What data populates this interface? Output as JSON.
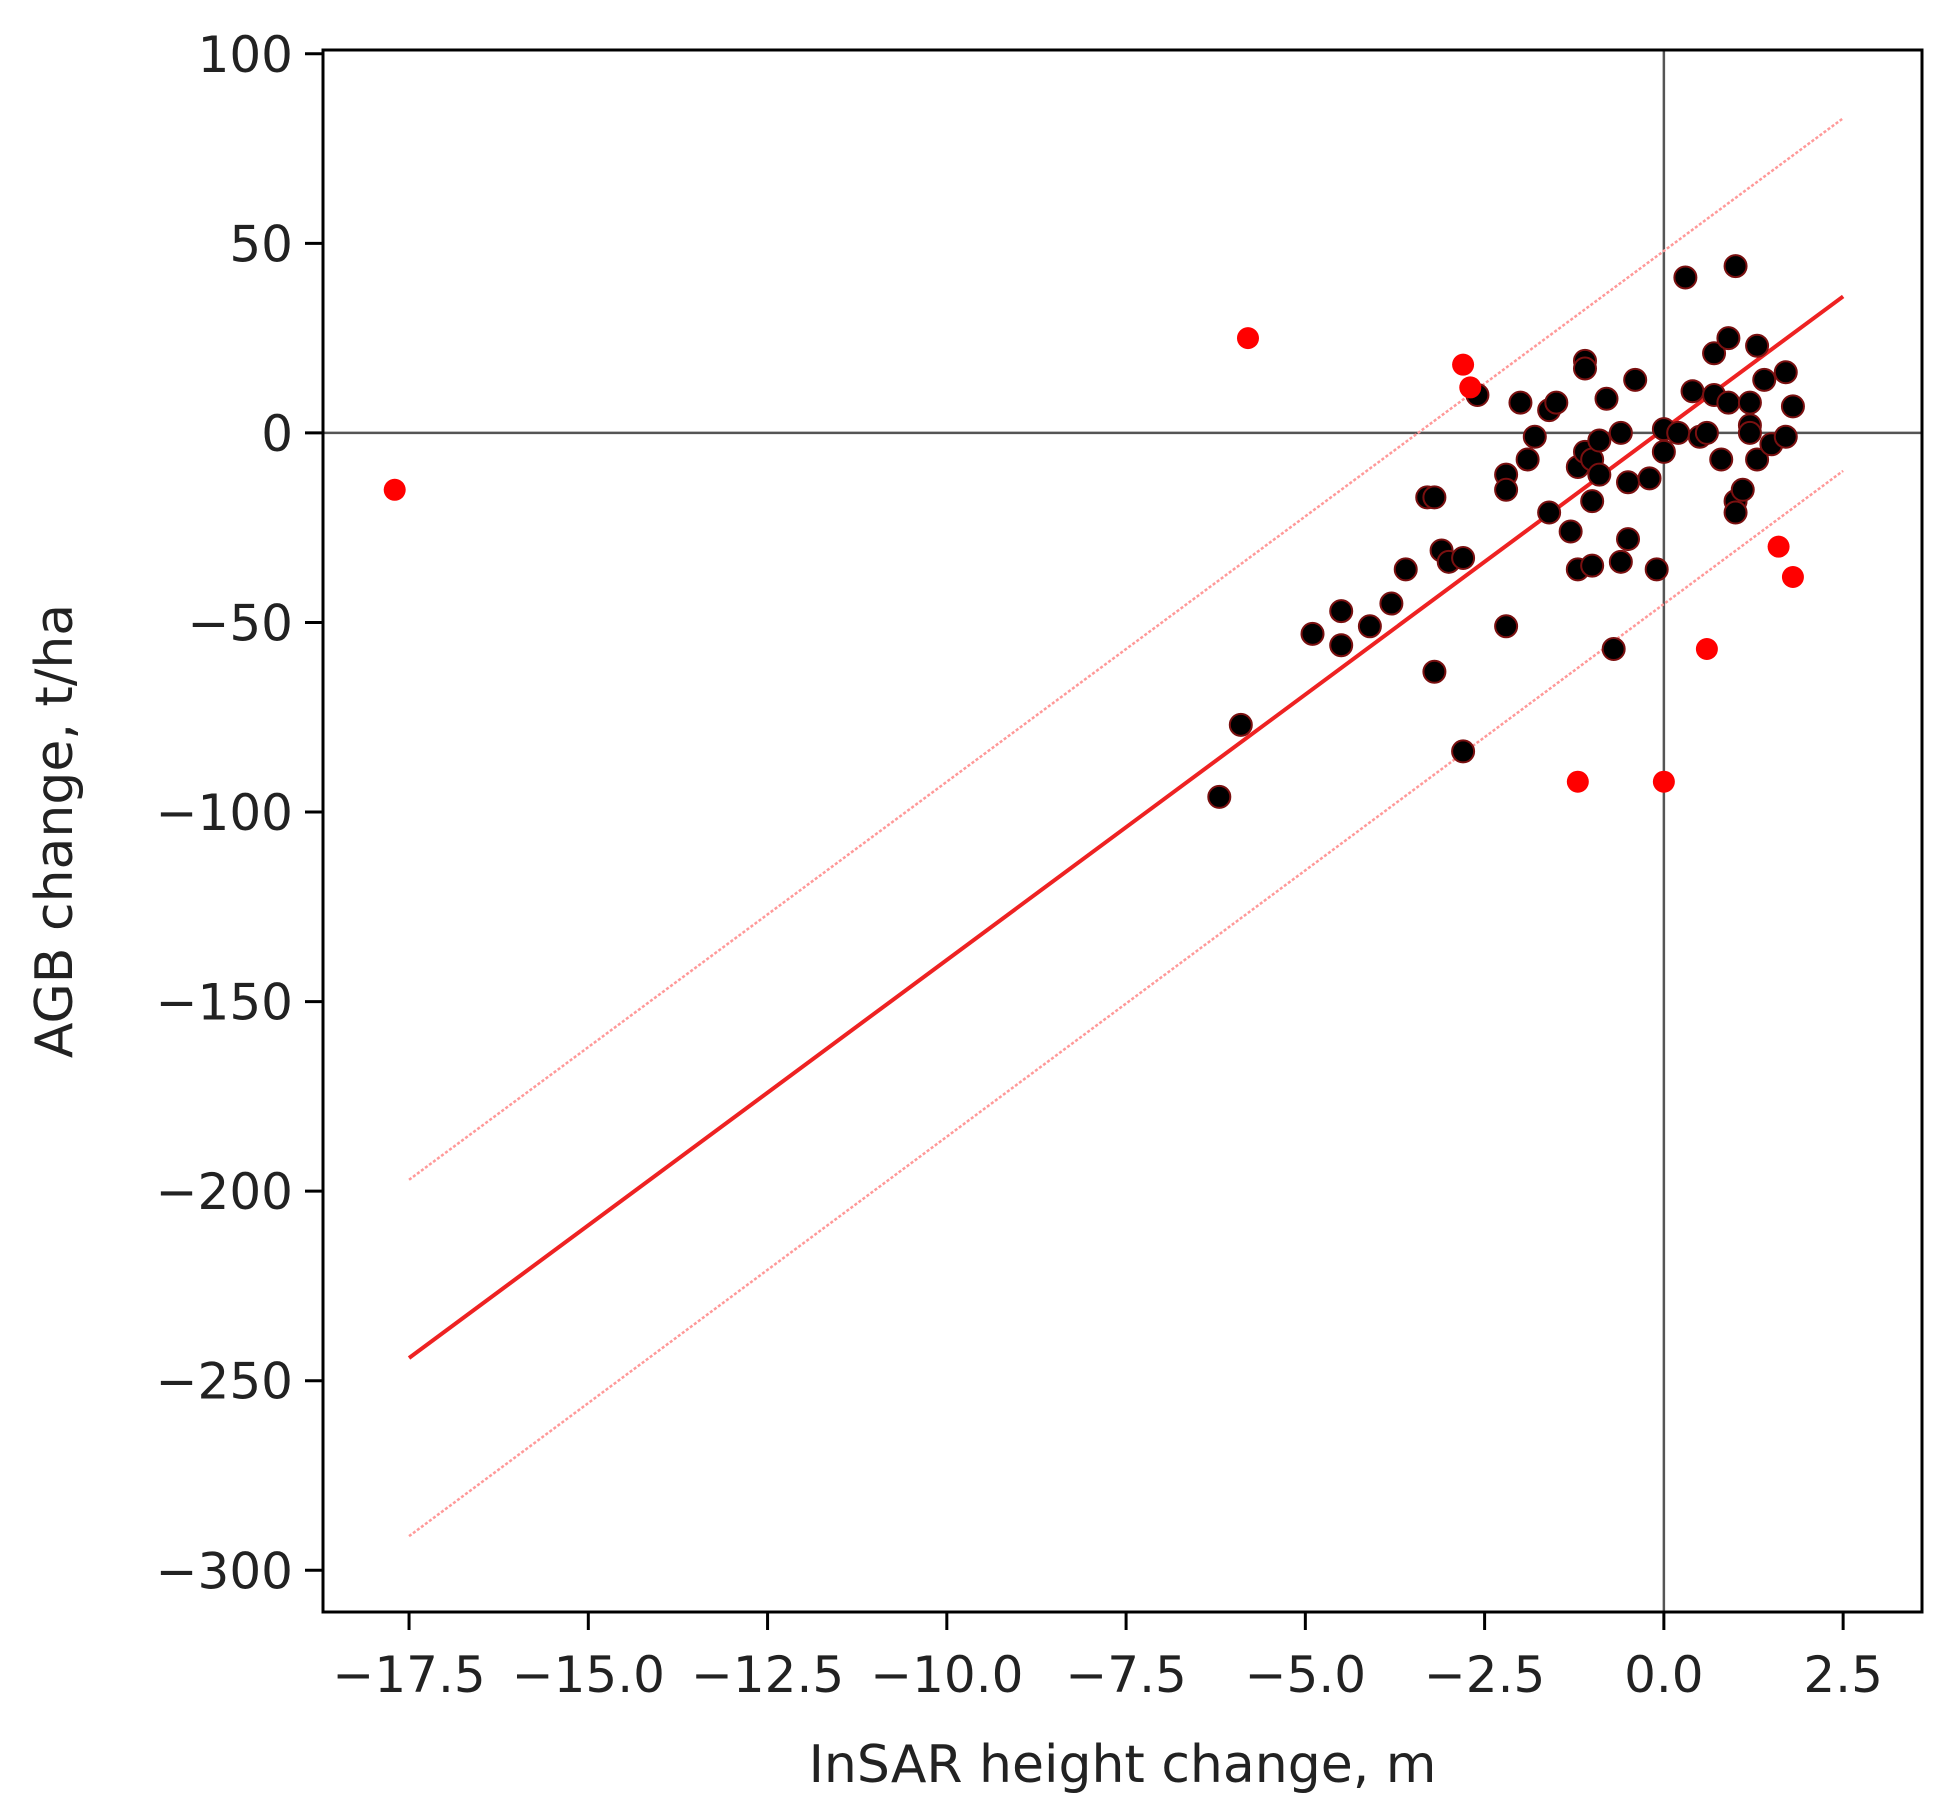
{
  "chart_data": {
    "type": "scatter",
    "xlabel": "InSAR height change, m",
    "ylabel": "AGB change, t/ha",
    "xlim": [
      -18.7,
      3.6
    ],
    "ylim": [
      -311,
      101
    ],
    "x_ticks": [
      -17.5,
      -15.0,
      -12.5,
      -10.0,
      -7.5,
      -5.0,
      -2.5,
      0.0,
      2.5
    ],
    "y_ticks": [
      100,
      50,
      0,
      -50,
      -100,
      -150,
      -200,
      -250,
      -300
    ],
    "x_tick_labels": [
      "−17.5",
      "−15.0",
      "−12.5",
      "−10.0",
      "−7.5",
      "−5.0",
      "−2.5",
      "0.0",
      "2.5"
    ],
    "y_tick_labels": [
      "100",
      "50",
      "0",
      "−50",
      "−100",
      "−150",
      "−200",
      "−250",
      "−300"
    ],
    "reference_lines": {
      "x": 0,
      "y": 0,
      "color": "#555555"
    },
    "fit_line": {
      "x": [
        -17.5,
        2.5
      ],
      "y": [
        -244,
        36
      ],
      "color": "#ee2222"
    },
    "interval_lines": [
      {
        "x": [
          -17.5,
          2.5
        ],
        "y": [
          -197,
          83
        ],
        "color": "#ff9999"
      },
      {
        "x": [
          -17.5,
          2.5
        ],
        "y": [
          -291,
          -10
        ],
        "color": "#ff9999"
      }
    ],
    "series": [
      {
        "marker_color": "#000000",
        "edge_color": "#7a1010",
        "points": [
          [
            -6.2,
            -96
          ],
          [
            -5.9,
            -77
          ],
          [
            -4.9,
            -53
          ],
          [
            -4.5,
            -47
          ],
          [
            -4.5,
            -56
          ],
          [
            -4.1,
            -51
          ],
          [
            -3.8,
            -45
          ],
          [
            -3.6,
            -36
          ],
          [
            -3.3,
            -17
          ],
          [
            -3.2,
            -17
          ],
          [
            -3.2,
            -63
          ],
          [
            -3.1,
            -31
          ],
          [
            -3.0,
            -34
          ],
          [
            -2.8,
            -33
          ],
          [
            -2.8,
            -84
          ],
          [
            -2.6,
            10
          ],
          [
            -2.2,
            -11
          ],
          [
            -2.2,
            -15
          ],
          [
            -2.2,
            -51
          ],
          [
            -2.0,
            8
          ],
          [
            -1.9,
            -7
          ],
          [
            -1.8,
            -1
          ],
          [
            -1.6,
            -21
          ],
          [
            -1.6,
            6
          ],
          [
            -1.5,
            8
          ],
          [
            -1.3,
            -26
          ],
          [
            -1.2,
            -9
          ],
          [
            -1.2,
            -36
          ],
          [
            -1.1,
            19
          ],
          [
            -1.1,
            17
          ],
          [
            -1.1,
            -5
          ],
          [
            -1.0,
            -7
          ],
          [
            -1.0,
            -18
          ],
          [
            -1.0,
            -35
          ],
          [
            -0.9,
            -2
          ],
          [
            -0.9,
            -11
          ],
          [
            -0.8,
            9
          ],
          [
            -0.7,
            -57
          ],
          [
            -0.6,
            0
          ],
          [
            -0.6,
            -34
          ],
          [
            -0.5,
            -13
          ],
          [
            -0.5,
            -28
          ],
          [
            -0.4,
            14
          ],
          [
            -0.2,
            -12
          ],
          [
            -0.1,
            -36
          ],
          [
            0.0,
            -5
          ],
          [
            0.0,
            1
          ],
          [
            0.2,
            0
          ],
          [
            0.3,
            41
          ],
          [
            0.4,
            11
          ],
          [
            0.5,
            -1
          ],
          [
            0.6,
            0
          ],
          [
            0.7,
            21
          ],
          [
            0.7,
            10
          ],
          [
            0.8,
            -7
          ],
          [
            0.9,
            25
          ],
          [
            0.9,
            8
          ],
          [
            1.0,
            44
          ],
          [
            1.0,
            -18
          ],
          [
            1.0,
            -21
          ],
          [
            1.1,
            -15
          ],
          [
            1.2,
            2
          ],
          [
            1.2,
            8
          ],
          [
            1.3,
            -7
          ],
          [
            1.3,
            23
          ],
          [
            1.4,
            14
          ],
          [
            1.5,
            -3
          ],
          [
            1.7,
            16
          ],
          [
            1.7,
            -1
          ],
          [
            1.8,
            7
          ],
          [
            1.2,
            0
          ]
        ]
      },
      {
        "marker_color": "#ff0000",
        "points": [
          [
            -17.7,
            -15
          ],
          [
            -5.8,
            25
          ],
          [
            -2.8,
            18
          ],
          [
            -2.7,
            12
          ],
          [
            -1.2,
            -92
          ],
          [
            0.0,
            -92
          ],
          [
            0.6,
            -57
          ],
          [
            1.6,
            -30
          ],
          [
            1.8,
            -38
          ]
        ]
      }
    ]
  }
}
